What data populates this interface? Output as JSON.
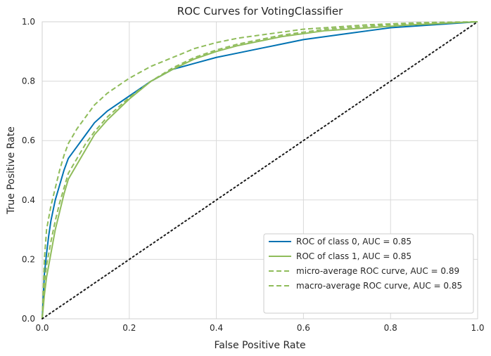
{
  "chart_data": {
    "type": "line",
    "title": "ROC Curves for VotingClassifier",
    "xlabel": "False Positive Rate",
    "ylabel": "True Positive Rate",
    "xlim": [
      0,
      1
    ],
    "ylim": [
      0,
      1
    ],
    "xticks": [
      "0.0",
      "0.2",
      "0.4",
      "0.6",
      "0.8",
      "1.0"
    ],
    "yticks": [
      "0.0",
      "0.2",
      "0.4",
      "0.6",
      "0.8",
      "1.0"
    ],
    "grid": true,
    "legend_position": "bottom-right",
    "series": [
      {
        "name": "ROC of class 0, AUC = 0.85",
        "color": "#0072b2",
        "style": "solid",
        "x": [
          0.0,
          0.005,
          0.01,
          0.015,
          0.02,
          0.03,
          0.04,
          0.05,
          0.06,
          0.08,
          0.1,
          0.12,
          0.15,
          0.2,
          0.25,
          0.3,
          0.35,
          0.4,
          0.45,
          0.5,
          0.55,
          0.6,
          0.65,
          0.7,
          0.75,
          0.8,
          0.85,
          0.9,
          0.95,
          1.0
        ],
        "y": [
          0.0,
          0.15,
          0.22,
          0.28,
          0.33,
          0.4,
          0.45,
          0.5,
          0.54,
          0.58,
          0.62,
          0.66,
          0.7,
          0.75,
          0.8,
          0.84,
          0.86,
          0.88,
          0.895,
          0.91,
          0.925,
          0.94,
          0.95,
          0.96,
          0.97,
          0.98,
          0.985,
          0.99,
          0.995,
          1.0
        ]
      },
      {
        "name": "ROC of class 1, AUC = 0.85",
        "color": "#8fbc5a",
        "style": "solid",
        "x": [
          0.0,
          0.005,
          0.01,
          0.02,
          0.03,
          0.04,
          0.05,
          0.06,
          0.08,
          0.1,
          0.12,
          0.15,
          0.2,
          0.25,
          0.3,
          0.35,
          0.4,
          0.45,
          0.5,
          0.55,
          0.6,
          0.65,
          0.7,
          0.75,
          0.8,
          0.85,
          0.9,
          0.95,
          1.0
        ],
        "y": [
          0.0,
          0.08,
          0.14,
          0.22,
          0.3,
          0.36,
          0.42,
          0.47,
          0.52,
          0.57,
          0.62,
          0.67,
          0.74,
          0.8,
          0.84,
          0.875,
          0.9,
          0.92,
          0.935,
          0.95,
          0.96,
          0.97,
          0.975,
          0.98,
          0.985,
          0.99,
          0.993,
          0.997,
          1.0
        ]
      },
      {
        "name": "micro-average ROC curve, AUC = 0.89",
        "color": "#8fbc5a",
        "style": "dashed",
        "x": [
          0.0,
          0.005,
          0.01,
          0.02,
          0.03,
          0.04,
          0.05,
          0.06,
          0.08,
          0.1,
          0.12,
          0.15,
          0.2,
          0.25,
          0.3,
          0.35,
          0.4,
          0.45,
          0.5,
          0.55,
          0.6,
          0.65,
          0.7,
          0.75,
          0.8,
          0.85,
          0.9,
          0.95,
          1.0
        ],
        "y": [
          0.0,
          0.2,
          0.3,
          0.38,
          0.44,
          0.5,
          0.55,
          0.59,
          0.64,
          0.68,
          0.72,
          0.76,
          0.81,
          0.85,
          0.88,
          0.91,
          0.93,
          0.945,
          0.955,
          0.965,
          0.975,
          0.98,
          0.985,
          0.99,
          0.993,
          0.996,
          0.998,
          0.999,
          1.0
        ]
      },
      {
        "name": "macro-average ROC curve, AUC = 0.85",
        "color": "#8fbc5a",
        "style": "dashed",
        "x": [
          0.0,
          0.005,
          0.01,
          0.02,
          0.03,
          0.04,
          0.05,
          0.06,
          0.08,
          0.1,
          0.12,
          0.15,
          0.2,
          0.25,
          0.3,
          0.35,
          0.4,
          0.45,
          0.5,
          0.55,
          0.6,
          0.65,
          0.7,
          0.75,
          0.8,
          0.85,
          0.9,
          0.95,
          1.0
        ],
        "y": [
          0.0,
          0.12,
          0.18,
          0.26,
          0.33,
          0.39,
          0.44,
          0.49,
          0.54,
          0.59,
          0.63,
          0.68,
          0.745,
          0.8,
          0.845,
          0.88,
          0.905,
          0.925,
          0.94,
          0.955,
          0.965,
          0.975,
          0.98,
          0.985,
          0.99,
          0.993,
          0.996,
          0.998,
          1.0
        ]
      },
      {
        "name": "",
        "color": "#1a1a1a",
        "style": "dotted",
        "x": [
          0,
          1
        ],
        "y": [
          0,
          1
        ]
      }
    ]
  }
}
